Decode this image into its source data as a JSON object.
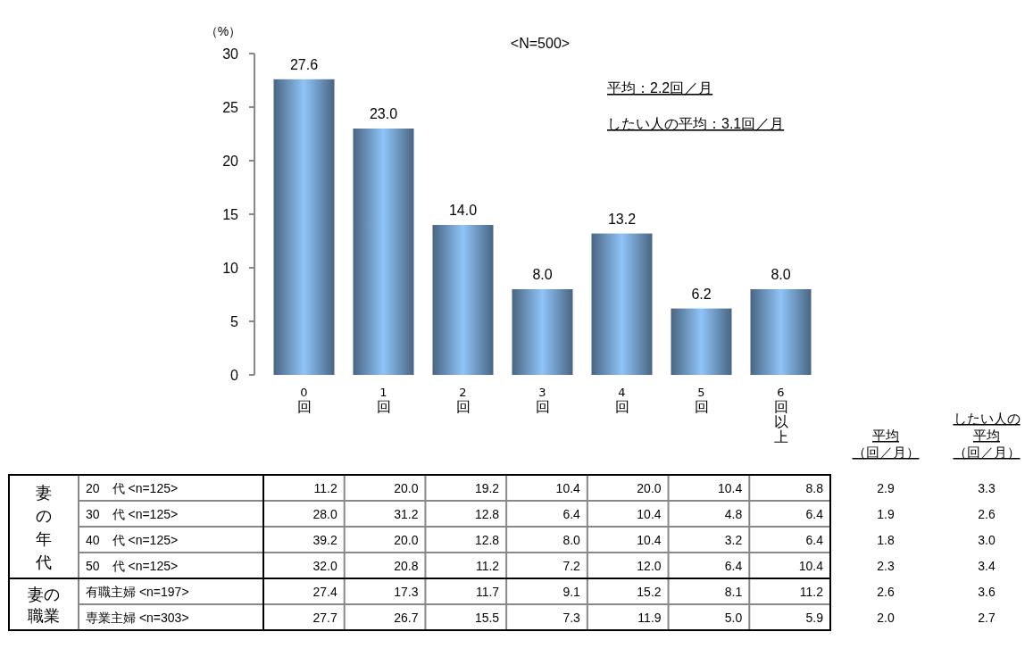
{
  "chart_data": [
    {
      "type": "bar",
      "ylabel": "（%）",
      "categories": [
        "0回",
        "1回",
        "2回",
        "3回",
        "4回",
        "5回",
        "6回以上"
      ],
      "values": [
        27.6,
        23.0,
        14.0,
        8.0,
        13.2,
        6.2,
        8.0
      ],
      "color": "#8fc4f8",
      "ylim": [
        0,
        30
      ],
      "yticks": [
        0,
        5,
        10,
        15,
        20,
        25,
        30
      ],
      "value_labels": [
        "27.6",
        "23.0",
        "14.0",
        "8.0",
        "13.2",
        "6.2",
        "8.0"
      ],
      "grid": false,
      "annotations": [
        "<N=500>",
        "平均：2.2回／月",
        "したい人の平均：3.1回／月"
      ]
    },
    {
      "type": "heatmap",
      "categories": [
        null,
        null,
        null,
        null,
        null,
        null,
        null
      ],
      "y_categories": [
        "20　代 <n=125>",
        "30　代 <n=125>",
        "40　代 <n=125>",
        "50　代 <n=125>",
        "有職主婦 <n=197>",
        "専業主婦 <n=303>"
      ],
      "cells": [
        [
          11.2,
          20.0,
          19.2,
          10.4,
          20.0,
          10.4,
          8.8
        ],
        [
          28.0,
          31.2,
          12.8,
          6.4,
          10.4,
          4.8,
          6.4
        ],
        [
          39.2,
          20.0,
          12.8,
          8.0,
          10.4,
          3.2,
          6.4
        ],
        [
          32.0,
          20.8,
          11.2,
          7.2,
          12.0,
          6.4,
          10.4
        ],
        [
          27.4,
          17.3,
          11.7,
          9.1,
          15.2,
          8.1,
          11.2
        ],
        [
          27.7,
          26.7,
          15.5,
          7.3,
          11.9,
          5.0,
          5.9
        ]
      ],
      "cell_labels": [
        [
          "11.2",
          "20.0",
          "19.2",
          "10.4",
          "20.0",
          "10.4",
          "8.8"
        ],
        [
          "28.0",
          "31.2",
          "12.8",
          "6.4",
          "10.4",
          "4.8",
          "6.4"
        ],
        [
          "39.2",
          "20.0",
          "12.8",
          "8.0",
          "10.4",
          "3.2",
          "6.4"
        ],
        [
          "32.0",
          "20.8",
          "11.2",
          "7.2",
          "12.0",
          "6.4",
          "10.4"
        ],
        [
          "27.4",
          "17.3",
          "11.7",
          "9.1",
          "15.2",
          "8.1",
          "11.2"
        ],
        [
          "27.7",
          "26.7",
          "15.5",
          "7.3",
          "11.9",
          "5.0",
          "5.9"
        ]
      ],
      "annotations": [
        "妻の年代",
        "妻の職業"
      ]
    },
    {
      "type": "heatmap",
      "categories": [
        "平均（回／月）",
        "したい人の平均（回／月）"
      ],
      "y_categories": [
        null,
        null,
        null,
        null,
        null,
        null
      ],
      "cells": [
        [
          2.9,
          3.3
        ],
        [
          1.9,
          2.6
        ],
        [
          1.8,
          3.0
        ],
        [
          2.3,
          3.4
        ],
        [
          2.6,
          3.6
        ],
        [
          2.0,
          2.7
        ]
      ],
      "cell_labels": [
        [
          "2.9",
          "3.3"
        ],
        [
          "1.9",
          "2.6"
        ],
        [
          "1.8",
          "3.0"
        ],
        [
          "2.3",
          "3.4"
        ],
        [
          "2.6",
          "3.6"
        ],
        [
          "2.0",
          "2.7"
        ]
      ]
    }
  ]
}
